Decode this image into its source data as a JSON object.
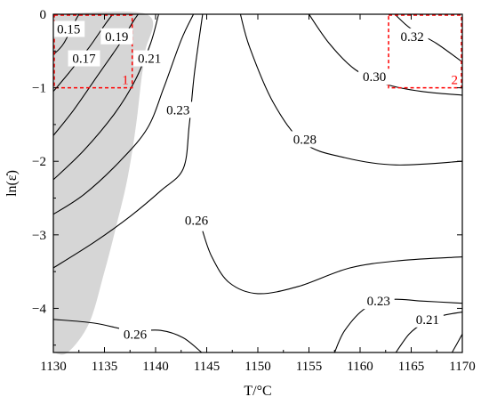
{
  "chart_data": {
    "type": "contour",
    "title": "",
    "xlabel": "T/°C",
    "ylabel": "ln(ε̇)",
    "xlim": [
      1130,
      1170
    ],
    "ylim": [
      -4.6,
      0
    ],
    "xticks": [
      1130,
      1135,
      1140,
      1145,
      1150,
      1155,
      1160,
      1165,
      1170
    ],
    "yticks": [
      0,
      -1,
      -2,
      -3,
      -4
    ],
    "grid": false,
    "contour_levels": [
      {
        "value": 0.15,
        "label": "0.15",
        "label_at": [
          1131.5,
          -0.2
        ]
      },
      {
        "value": 0.17,
        "label": "0.17",
        "label_at": [
          1133.0,
          -0.6
        ]
      },
      {
        "value": 0.19,
        "label": "0.19",
        "label_at": [
          1136.2,
          -0.3
        ]
      },
      {
        "value": 0.21,
        "label": "0.21",
        "label_at": [
          1139.4,
          -0.6
        ]
      },
      {
        "value": 0.23,
        "label": "0.23",
        "label_at": [
          1142.2,
          -1.3
        ]
      },
      {
        "value": 0.26,
        "label": "0.26",
        "label_at": [
          1144.0,
          -2.8
        ]
      },
      {
        "value": 0.28,
        "label": "0.28",
        "label_at": [
          1154.6,
          -1.7
        ]
      },
      {
        "value": 0.3,
        "label": "0.30",
        "label_at": [
          1161.4,
          -0.85
        ]
      },
      {
        "value": 0.32,
        "label": "0.32",
        "label_at": [
          1165.1,
          -0.3
        ]
      },
      {
        "value": 0.26,
        "label": "0.26",
        "label_at": [
          1138.0,
          -4.35
        ]
      },
      {
        "value": 0.23,
        "label": "0.23",
        "label_at": [
          1161.8,
          -3.9
        ]
      },
      {
        "value": 0.21,
        "label": "0.21",
        "label_at": [
          1166.6,
          -4.15
        ]
      }
    ],
    "contour_lines": [
      {
        "level": 0.15,
        "points": [
          [
            1130,
            -0.55
          ],
          [
            1131.0,
            -0.4
          ],
          [
            1132.3,
            -0.05
          ],
          [
            1132.6,
            0
          ]
        ]
      },
      {
        "level": 0.17,
        "points": [
          [
            1130,
            -1.05
          ],
          [
            1131.5,
            -0.8
          ],
          [
            1133.5,
            -0.45
          ],
          [
            1135.0,
            -0.15
          ],
          [
            1135.8,
            0
          ]
        ]
      },
      {
        "level": 0.19,
        "points": [
          [
            1130,
            -1.65
          ],
          [
            1132.0,
            -1.3
          ],
          [
            1134.5,
            -0.8
          ],
          [
            1136.5,
            -0.4
          ],
          [
            1137.8,
            -0.1
          ],
          [
            1138.3,
            0
          ]
        ]
      },
      {
        "level": 0.21,
        "points": [
          [
            1130,
            -2.25
          ],
          [
            1133.0,
            -1.85
          ],
          [
            1136.0,
            -1.35
          ],
          [
            1138.0,
            -0.9
          ],
          [
            1139.5,
            -0.4
          ],
          [
            1140.3,
            0
          ]
        ]
      },
      {
        "level": 0.23,
        "points": [
          [
            1130,
            -2.72
          ],
          [
            1133.0,
            -2.45
          ],
          [
            1136.5,
            -2.0
          ],
          [
            1139.2,
            -1.55
          ],
          [
            1140.8,
            -1.0
          ],
          [
            1142.5,
            -0.35
          ],
          [
            1143.7,
            0
          ]
        ]
      },
      {
        "level": 0.26,
        "points": [
          [
            1130,
            -3.45
          ],
          [
            1134.0,
            -3.1
          ],
          [
            1137.5,
            -2.75
          ],
          [
            1140.5,
            -2.4
          ],
          [
            1142.7,
            -2.1
          ],
          [
            1143.3,
            -1.5
          ],
          [
            1143.8,
            -0.8
          ],
          [
            1144.6,
            0
          ]
        ]
      },
      {
        "level": 0.26,
        "points": [
          [
            1144.6,
            -2.95
          ],
          [
            1145.5,
            -3.3
          ],
          [
            1147.2,
            -3.65
          ],
          [
            1150.0,
            -3.8
          ],
          [
            1154.0,
            -3.7
          ],
          [
            1159.0,
            -3.45
          ],
          [
            1164.0,
            -3.35
          ],
          [
            1170,
            -3.3
          ]
        ]
      },
      {
        "level": 0.28,
        "points": [
          [
            1148.3,
            0
          ],
          [
            1149.2,
            -0.45
          ],
          [
            1151.5,
            -1.2
          ],
          [
            1154.5,
            -1.75
          ],
          [
            1158.5,
            -1.95
          ],
          [
            1163.5,
            -2.05
          ],
          [
            1170,
            -2.0
          ]
        ]
      },
      {
        "level": 0.3,
        "points": [
          [
            1155.0,
            0
          ],
          [
            1157.0,
            -0.4
          ],
          [
            1159.5,
            -0.75
          ],
          [
            1162.5,
            -0.95
          ],
          [
            1166.0,
            -1.05
          ],
          [
            1170,
            -1.1
          ]
        ]
      },
      {
        "level": 0.32,
        "points": [
          [
            1163.4,
            0
          ],
          [
            1165.0,
            -0.2
          ],
          [
            1167.5,
            -0.4
          ],
          [
            1170,
            -0.65
          ]
        ]
      },
      {
        "level": 0.26,
        "points": [
          [
            1130,
            -4.15
          ],
          [
            1134.0,
            -4.2
          ],
          [
            1137.5,
            -4.3
          ],
          [
            1140.5,
            -4.3
          ],
          [
            1142.7,
            -4.4
          ],
          [
            1144.5,
            -4.6
          ]
        ]
      },
      {
        "level": 0.23,
        "points": [
          [
            1157.5,
            -4.6
          ],
          [
            1158.5,
            -4.3
          ],
          [
            1160.5,
            -4.0
          ],
          [
            1163.0,
            -3.88
          ],
          [
            1166.0,
            -3.9
          ],
          [
            1170,
            -3.93
          ]
        ]
      },
      {
        "level": 0.21,
        "points": [
          [
            1163.5,
            -4.6
          ],
          [
            1164.8,
            -4.35
          ],
          [
            1166.2,
            -4.2
          ],
          [
            1168.0,
            -4.1
          ],
          [
            1170,
            -4.05
          ]
        ]
      },
      {
        "level": 0.19,
        "points": [
          [
            1169.0,
            -4.6
          ],
          [
            1169.6,
            -4.45
          ],
          [
            1170,
            -4.35
          ]
        ]
      }
    ],
    "shaded_region": [
      [
        1130,
        -4.6
      ],
      [
        1131.4,
        -4.6
      ],
      [
        1133.5,
        -4.2
      ],
      [
        1135.0,
        -3.5
      ],
      [
        1136.3,
        -2.8
      ],
      [
        1137.3,
        -2.2
      ],
      [
        1138.1,
        -1.5
      ],
      [
        1138.6,
        -0.9
      ],
      [
        1139.0,
        -0.5
      ],
      [
        1139.1,
        0
      ],
      [
        1130,
        0
      ]
    ],
    "regions": [
      {
        "label": "1",
        "x": [
          1130,
          1137.8
        ],
        "y": [
          -1.0,
          0
        ]
      },
      {
        "label": "2",
        "x": [
          1162.7,
          1170
        ],
        "y": [
          -1.0,
          0
        ]
      }
    ]
  }
}
